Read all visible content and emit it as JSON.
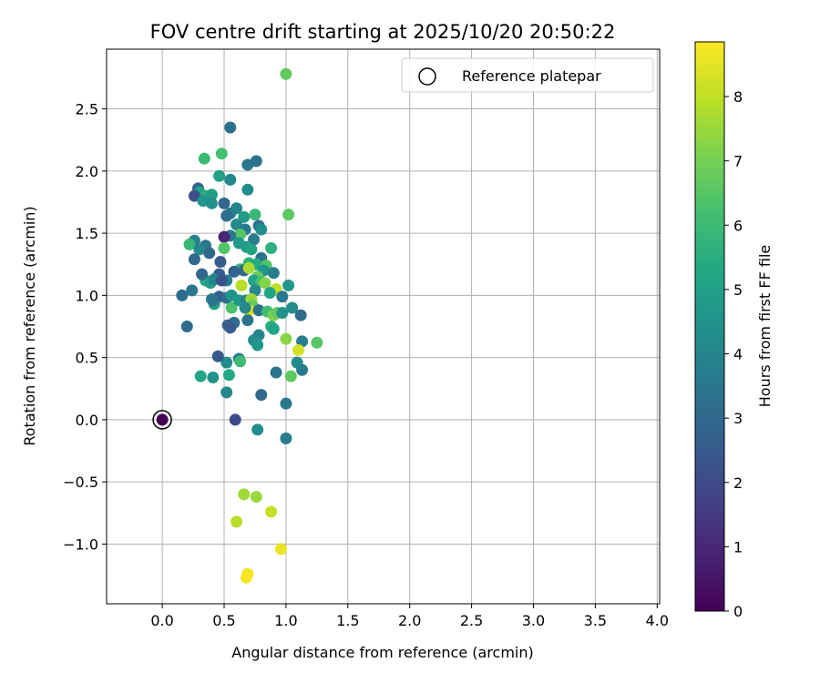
{
  "chart_data": {
    "type": "scatter",
    "title": "FOV centre drift starting at 2025/10/20 20:50:22",
    "xlabel": "Angular distance from reference (arcmin)",
    "ylabel": "Rotation from reference (arcmin)",
    "xlim": [
      -0.45,
      4.02
    ],
    "ylim": [
      -1.48,
      2.98
    ],
    "xticks": [
      0.0,
      0.5,
      1.0,
      1.5,
      2.0,
      2.5,
      3.0,
      3.5,
      4.0
    ],
    "xtick_labels": [
      "0.0",
      "0.5",
      "1.0",
      "1.5",
      "2.0",
      "2.5",
      "3.0",
      "3.5",
      "4.0"
    ],
    "yticks": [
      -1.0,
      -0.5,
      0.0,
      0.5,
      1.0,
      1.5,
      2.0,
      2.5
    ],
    "ytick_labels": [
      "−1.0",
      "−0.5",
      "0.0",
      "0.5",
      "1.0",
      "1.5",
      "2.0",
      "2.5"
    ],
    "grid": true,
    "legend": {
      "position": "top-right",
      "entries": [
        "Reference platepar"
      ]
    },
    "reference": {
      "x": 0.0,
      "y": 0.0,
      "hours": 0.0
    },
    "colorbar": {
      "label": "Hours from first FF file",
      "range": [
        0,
        8.85
      ],
      "ticks": [
        0,
        1,
        2,
        3,
        4,
        5,
        6,
        7,
        8
      ],
      "tick_labels": [
        "0",
        "1",
        "2",
        "3",
        "4",
        "5",
        "6",
        "7",
        "8"
      ],
      "colormap": "viridis"
    },
    "points": [
      [
        1.0,
        2.78,
        6.7
      ],
      [
        0.55,
        2.35,
        3.3
      ],
      [
        0.48,
        2.14,
        6.2
      ],
      [
        0.34,
        2.1,
        6.0
      ],
      [
        0.76,
        2.08,
        3.4
      ],
      [
        0.69,
        2.05,
        3.5
      ],
      [
        0.46,
        1.96,
        5.0
      ],
      [
        0.55,
        1.93,
        4.1
      ],
      [
        0.29,
        1.86,
        2.7
      ],
      [
        0.3,
        1.83,
        5.2
      ],
      [
        0.35,
        1.8,
        5.5
      ],
      [
        0.26,
        1.8,
        2.2
      ],
      [
        0.4,
        1.81,
        4.9
      ],
      [
        0.33,
        1.76,
        4.6
      ],
      [
        0.69,
        1.85,
        4.3
      ],
      [
        0.4,
        1.74,
        4.4
      ],
      [
        0.5,
        1.74,
        2.9
      ],
      [
        0.6,
        1.7,
        4.0
      ],
      [
        0.55,
        1.66,
        3.7
      ],
      [
        0.52,
        1.64,
        3.2
      ],
      [
        1.02,
        1.65,
        6.6
      ],
      [
        0.66,
        1.63,
        4.8
      ],
      [
        0.75,
        1.65,
        5.9
      ],
      [
        0.6,
        1.57,
        4.1
      ],
      [
        0.67,
        1.53,
        3.6
      ],
      [
        0.78,
        1.56,
        3.3
      ],
      [
        0.8,
        1.53,
        4.4
      ],
      [
        0.63,
        1.49,
        6.5
      ],
      [
        0.55,
        1.48,
        3.5
      ],
      [
        0.5,
        1.47,
        0.9
      ],
      [
        0.74,
        1.45,
        3.6
      ],
      [
        0.62,
        1.42,
        4.7
      ],
      [
        0.68,
        1.39,
        4.8
      ],
      [
        0.72,
        1.37,
        5.1
      ],
      [
        0.88,
        1.38,
        5.6
      ],
      [
        0.8,
        1.3,
        3.4
      ],
      [
        0.7,
        1.26,
        5.7
      ],
      [
        0.76,
        1.25,
        5.4
      ],
      [
        0.84,
        1.24,
        6.4
      ],
      [
        0.63,
        1.21,
        5.8
      ],
      [
        0.5,
        1.38,
        6.4
      ],
      [
        0.26,
        1.44,
        3.8
      ],
      [
        0.35,
        1.4,
        3.5
      ],
      [
        0.22,
        1.41,
        5.9
      ],
      [
        0.3,
        1.37,
        4.1
      ],
      [
        0.26,
        1.29,
        3.0
      ],
      [
        0.38,
        1.34,
        3.0
      ],
      [
        0.47,
        1.27,
        2.6
      ],
      [
        0.58,
        1.19,
        2.8
      ],
      [
        0.66,
        1.2,
        3.0
      ],
      [
        0.7,
        1.22,
        7.7
      ],
      [
        0.82,
        1.2,
        4.6
      ],
      [
        0.9,
        1.18,
        3.8
      ],
      [
        0.77,
        1.15,
        6.8
      ],
      [
        0.74,
        1.12,
        5.2
      ],
      [
        0.8,
        1.11,
        6.1
      ],
      [
        0.83,
        1.1,
        7.2
      ],
      [
        0.64,
        1.08,
        7.9
      ],
      [
        0.92,
        1.05,
        8.0
      ],
      [
        1.02,
        1.08,
        4.6
      ],
      [
        0.75,
        1.04,
        4.1
      ],
      [
        0.87,
        1.02,
        5.2
      ],
      [
        0.97,
        0.99,
        3.5
      ],
      [
        0.52,
        1.12,
        3.8
      ],
      [
        0.46,
        1.17,
        2.7
      ],
      [
        0.35,
        1.12,
        5.4
      ],
      [
        0.32,
        1.17,
        2.9
      ],
      [
        0.39,
        1.1,
        4.9
      ],
      [
        0.42,
        1.13,
        4.0
      ],
      [
        0.48,
        1.12,
        2.3
      ],
      [
        0.16,
        1.0,
        3.1
      ],
      [
        0.24,
        1.04,
        3.5
      ],
      [
        0.4,
        0.97,
        4.0
      ],
      [
        0.46,
        0.99,
        2.7
      ],
      [
        0.52,
        0.98,
        3.1
      ],
      [
        0.56,
        0.9,
        6.3
      ],
      [
        0.56,
        1.0,
        4.5
      ],
      [
        0.62,
        0.96,
        4.8
      ],
      [
        0.68,
        0.96,
        3.9
      ],
      [
        0.72,
        0.97,
        7.5
      ],
      [
        0.73,
        0.92,
        6.8
      ],
      [
        0.7,
        0.88,
        8.4
      ],
      [
        0.67,
        0.9,
        4.1
      ],
      [
        0.78,
        0.88,
        3.3
      ],
      [
        0.85,
        0.87,
        6.1
      ],
      [
        0.9,
        0.84,
        7.1
      ],
      [
        0.93,
        0.86,
        6.7
      ],
      [
        0.97,
        0.86,
        4.5
      ],
      [
        1.05,
        0.9,
        4.3
      ],
      [
        1.12,
        0.84,
        3.0
      ],
      [
        0.88,
        0.75,
        5.7
      ],
      [
        0.9,
        0.73,
        5.2
      ],
      [
        0.78,
        0.68,
        4.0
      ],
      [
        0.74,
        0.64,
        4.2
      ],
      [
        0.77,
        0.6,
        4.6
      ],
      [
        0.69,
        0.8,
        3.4
      ],
      [
        0.58,
        0.78,
        3.1
      ],
      [
        0.53,
        0.76,
        2.8
      ],
      [
        0.55,
        0.74,
        2.6
      ],
      [
        0.42,
        0.93,
        5.0
      ],
      [
        0.41,
        0.96,
        3.3
      ],
      [
        0.2,
        0.75,
        3.1
      ],
      [
        1.0,
        0.65,
        7.3
      ],
      [
        1.13,
        0.63,
        3.8
      ],
      [
        1.25,
        0.62,
        6.5
      ],
      [
        1.1,
        0.56,
        8.3
      ],
      [
        1.09,
        0.46,
        4.2
      ],
      [
        1.13,
        0.4,
        3.6
      ],
      [
        1.04,
        0.35,
        6.6
      ],
      [
        0.92,
        0.38,
        3.4
      ],
      [
        0.62,
        0.49,
        3.6
      ],
      [
        0.63,
        0.47,
        6.0
      ],
      [
        0.52,
        0.46,
        4.3
      ],
      [
        0.45,
        0.51,
        2.5
      ],
      [
        0.31,
        0.35,
        5.2
      ],
      [
        0.41,
        0.34,
        4.5
      ],
      [
        0.54,
        0.36,
        5.3
      ],
      [
        0.52,
        0.22,
        4.1
      ],
      [
        0.8,
        0.2,
        3.0
      ],
      [
        1.0,
        0.13,
        3.5
      ],
      [
        0.59,
        0.0,
        2.0
      ],
      [
        0.77,
        -0.08,
        4.3
      ],
      [
        1.0,
        -0.15,
        3.6
      ],
      [
        0.66,
        -0.6,
        7.6
      ],
      [
        0.76,
        -0.62,
        7.5
      ],
      [
        0.6,
        -0.82,
        7.9
      ],
      [
        0.88,
        -0.74,
        8.1
      ],
      [
        0.96,
        -1.04,
        8.6
      ],
      [
        0.69,
        -1.24,
        8.7
      ],
      [
        0.68,
        -1.27,
        8.8
      ]
    ]
  }
}
